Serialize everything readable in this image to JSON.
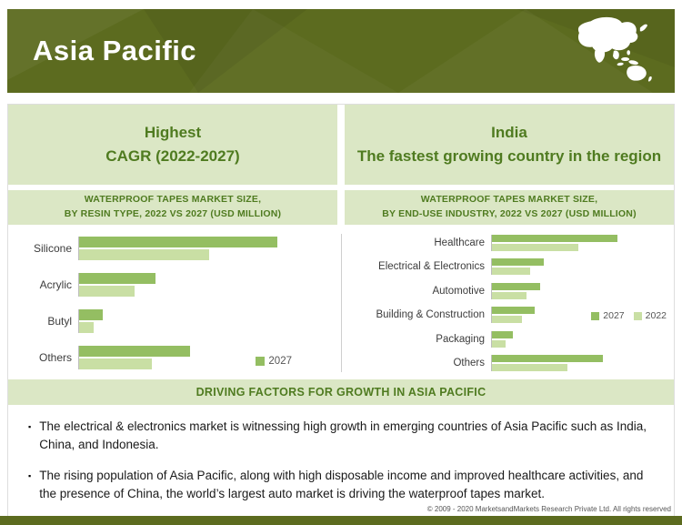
{
  "header": {
    "title": "Asia Pacific"
  },
  "highlights": [
    {
      "line1": "Highest",
      "line2": "CAGR (2022-2027)"
    },
    {
      "line1": "India",
      "line2": "The fastest growing country in the region"
    }
  ],
  "chart_data": [
    {
      "type": "bar",
      "orientation": "horizontal",
      "title_line1": "WATERPROOF TAPES MARKET SIZE,",
      "title_line2": "BY RESIN TYPE, 2022 VS 2027 (USD MILLION)",
      "categories": [
        "Silicone",
        "Acrylic",
        "Butyl",
        "Others"
      ],
      "series": [
        {
          "name": "2027",
          "color": "#94be62",
          "values": [
            93,
            36,
            11,
            52
          ]
        },
        {
          "name": "2022",
          "color": "#c9dfa4",
          "values": [
            61,
            26,
            7,
            34
          ]
        }
      ],
      "xlim": [
        0,
        100
      ],
      "legend": [
        "2027"
      ],
      "legend_position": "bottom-right",
      "note": "no axis tick labels shown; values estimated from relative bar lengths"
    },
    {
      "type": "bar",
      "orientation": "horizontal",
      "title_line1": "WATERPROOF TAPES MARKET SIZE,",
      "title_line2": "BY END-USE INDUSTRY, 2022 VS 2027 (USD MILLION)",
      "categories": [
        "Healthcare",
        "Electrical & Electronics",
        "Automotive",
        "Building & Construction",
        "Packaging",
        "Others"
      ],
      "series": [
        {
          "name": "2027",
          "color": "#94be62",
          "values": [
            92,
            38,
            35,
            31,
            15,
            81
          ]
        },
        {
          "name": "2022",
          "color": "#c9dfa4",
          "values": [
            63,
            28,
            25,
            22,
            10,
            55
          ]
        }
      ],
      "xlim": [
        0,
        100
      ],
      "legend": [
        "2027",
        "2022"
      ],
      "legend_position": "middle-right",
      "note": "no axis tick labels shown; values estimated from relative bar lengths"
    }
  ],
  "driving": {
    "title": "DRIVING FACTORS FOR GROWTH IN ASIA PACIFIC",
    "marker": "▪",
    "bullets": [
      "The electrical & electronics market is witnessing high growth in emerging countries of Asia Pacific such as India, China, and Indonesia.",
      "The rising population of Asia Pacific, along with high disposable income and improved healthcare activities, and the presence of China, the world’s largest auto market is driving the waterproof tapes market."
    ]
  },
  "footer": {
    "copyright": "© 2009 - 2020 MarketsandMarkets Research Private Ltd. All rights reserved"
  },
  "colors": {
    "olive": "#5c6b1f",
    "panel_green": "#dbe7c5",
    "heading_green": "#4f7b20",
    "bar_2027": "#94be62",
    "bar_2022": "#c9dfa4"
  }
}
